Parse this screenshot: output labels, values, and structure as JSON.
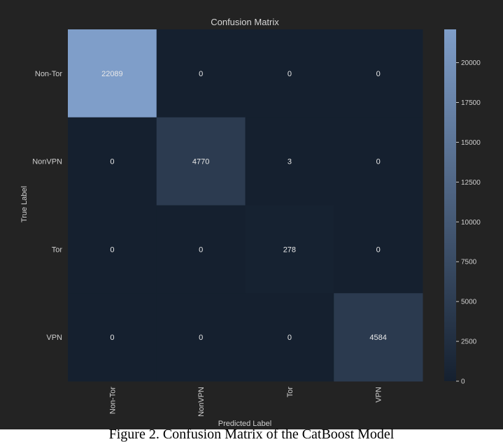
{
  "chart_data": {
    "type": "heatmap",
    "title": "Confusion Matrix",
    "xlabel": "Predicted Label",
    "ylabel": "True Label",
    "x_categories": [
      "Non-Tor",
      "NonVPN",
      "Tor",
      "VPN"
    ],
    "y_categories": [
      "Non-Tor",
      "NonVPN",
      "Tor",
      "VPN"
    ],
    "values": [
      [
        22089,
        0,
        0,
        0
      ],
      [
        0,
        4770,
        3,
        0
      ],
      [
        0,
        0,
        278,
        0
      ],
      [
        0,
        0,
        0,
        4584
      ]
    ],
    "colorbar": {
      "range": [
        0,
        22089
      ],
      "ticks": [
        0,
        2500,
        5000,
        7500,
        10000,
        12500,
        15000,
        17500,
        20000
      ],
      "colors": {
        "low": "#15202f",
        "high": "#7f9ec9"
      }
    },
    "grid": false
  },
  "caption": "Figure 2. Confusion Matrix of the CatBoost Model"
}
